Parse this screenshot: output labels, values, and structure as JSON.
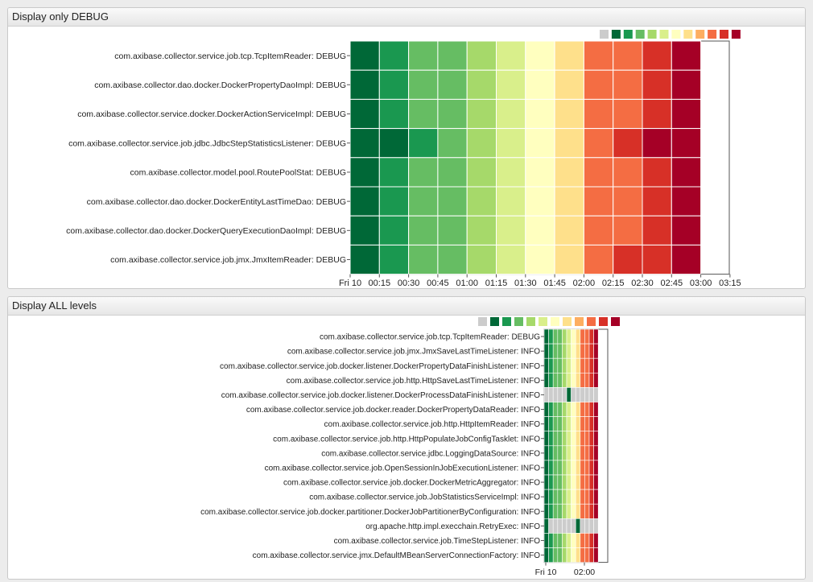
{
  "colors": [
    "#cccccc",
    "#006837",
    "#1a9850",
    "#66bd63",
    "#a6d96a",
    "#d9ef8b",
    "#ffffbf",
    "#fee08b",
    "#fdae61",
    "#f46d43",
    "#d73027",
    "#a50026"
  ],
  "panels": [
    {
      "title": "Display only DEBUG"
    },
    {
      "title": "Display ALL levels"
    }
  ],
  "chart_data": [
    {
      "type": "heatmap",
      "title": "Display only DEBUG",
      "x_ticks": [
        "Fri 10",
        "00:15",
        "00:30",
        "00:45",
        "01:00",
        "01:15",
        "01:30",
        "01:45",
        "02:00",
        "02:15",
        "02:30",
        "02:45",
        "03:00",
        "03:15"
      ],
      "rows": [
        "com.axibase.collector.service.job.tcp.TcpItemReader: DEBUG",
        "com.axibase.collector.dao.docker.DockerPropertyDaoImpl: DEBUG",
        "com.axibase.collector.service.docker.DockerActionServiceImpl: DEBUG",
        "com.axibase.collector.service.job.jdbc.JdbcStepStatisticsListener: DEBUG",
        "com.axibase.collector.model.pool.RoutePoolStat: DEBUG",
        "com.axibase.collector.dao.docker.DockerEntityLastTimeDao: DEBUG",
        "com.axibase.collector.dao.docker.DockerQueryExecutionDaoImpl: DEBUG",
        "com.axibase.collector.service.job.jmx.JmxItemReader: DEBUG"
      ],
      "color_index": [
        [
          1,
          2,
          3,
          3,
          4,
          5,
          6,
          7,
          9,
          9,
          10,
          11
        ],
        [
          1,
          2,
          3,
          3,
          4,
          5,
          6,
          7,
          9,
          9,
          10,
          11
        ],
        [
          1,
          2,
          3,
          3,
          4,
          5,
          6,
          7,
          9,
          9,
          10,
          11
        ],
        [
          1,
          1,
          2,
          3,
          4,
          5,
          6,
          7,
          9,
          10,
          11,
          11
        ],
        [
          1,
          2,
          3,
          3,
          4,
          5,
          6,
          7,
          9,
          9,
          10,
          11
        ],
        [
          1,
          2,
          3,
          3,
          4,
          5,
          6,
          7,
          9,
          9,
          10,
          11
        ],
        [
          1,
          2,
          3,
          3,
          4,
          5,
          6,
          7,
          9,
          9,
          10,
          11
        ],
        [
          1,
          2,
          3,
          3,
          4,
          5,
          6,
          7,
          9,
          10,
          10,
          11
        ]
      ],
      "legend_position": "top-right",
      "grid": true
    },
    {
      "type": "heatmap",
      "title": "Display ALL levels",
      "x_ticks": [
        "Fri 10",
        "02:00"
      ],
      "rows": [
        "com.axibase.collector.service.job.tcp.TcpItemReader: DEBUG",
        "com.axibase.collector.service.job.jmx.JmxSaveLastTimeListener: INFO",
        "com.axibase.collector.service.job.docker.listener.DockerPropertyDataFinishListener: INFO",
        "com.axibase.collector.service.job.http.HttpSaveLastTimeListener: INFO",
        "com.axibase.collector.service.job.docker.listener.DockerProcessDataFinishListener: INFO",
        "com.axibase.collector.service.job.docker.reader.DockerPropertyDataReader: INFO",
        "com.axibase.collector.service.job.http.HttpItemReader: INFO",
        "com.axibase.collector.service.job.http.HttpPopulateJobConfigTasklet: INFO",
        "com.axibase.collector.service.jdbc.LoggingDataSource: INFO",
        "com.axibase.collector.service.job.OpenSessionInJobExecutionListener: INFO",
        "com.axibase.collector.service.job.docker.DockerMetricAggregator: INFO",
        "com.axibase.collector.service.job.JobStatisticsServiceImpl: INFO",
        "com.axibase.collector.service.job.docker.partitioner.DockerJobPartitionerByConfiguration: INFO",
        "org.apache.http.impl.execchain.RetryExec: INFO",
        "com.axibase.collector.service.job.TimeStepListener: INFO",
        "com.axibase.collector.service.jmx.DefaultMBeanServerConnectionFactory: INFO"
      ],
      "color_index": [
        [
          1,
          2,
          3,
          3,
          4,
          5,
          6,
          7,
          9,
          9,
          10,
          11
        ],
        [
          1,
          2,
          3,
          3,
          4,
          5,
          6,
          7,
          9,
          9,
          10,
          11
        ],
        [
          1,
          2,
          3,
          3,
          4,
          5,
          6,
          7,
          9,
          9,
          10,
          11
        ],
        [
          1,
          2,
          3,
          3,
          4,
          5,
          6,
          7,
          9,
          9,
          10,
          11
        ],
        [
          0,
          0,
          0,
          0,
          0,
          1,
          0,
          0,
          0,
          0,
          0,
          0
        ],
        [
          1,
          2,
          3,
          3,
          4,
          5,
          6,
          7,
          9,
          9,
          10,
          11
        ],
        [
          1,
          2,
          3,
          3,
          4,
          5,
          6,
          7,
          9,
          9,
          10,
          11
        ],
        [
          1,
          2,
          3,
          3,
          4,
          5,
          6,
          7,
          9,
          9,
          10,
          11
        ],
        [
          1,
          2,
          3,
          3,
          4,
          5,
          6,
          7,
          9,
          9,
          10,
          11
        ],
        [
          1,
          2,
          3,
          3,
          4,
          5,
          6,
          7,
          9,
          9,
          10,
          11
        ],
        [
          1,
          2,
          3,
          3,
          4,
          5,
          6,
          7,
          9,
          9,
          10,
          11
        ],
        [
          1,
          2,
          3,
          3,
          4,
          5,
          6,
          7,
          9,
          9,
          10,
          11
        ],
        [
          1,
          2,
          3,
          3,
          4,
          5,
          6,
          7,
          9,
          9,
          10,
          11
        ],
        [
          1,
          0,
          0,
          0,
          0,
          0,
          0,
          1,
          0,
          0,
          0,
          0
        ],
        [
          1,
          2,
          3,
          3,
          4,
          5,
          6,
          7,
          9,
          9,
          10,
          11
        ],
        [
          1,
          2,
          3,
          3,
          4,
          5,
          6,
          7,
          9,
          9,
          10,
          11
        ]
      ],
      "legend_position": "top-right",
      "grid": true
    }
  ]
}
